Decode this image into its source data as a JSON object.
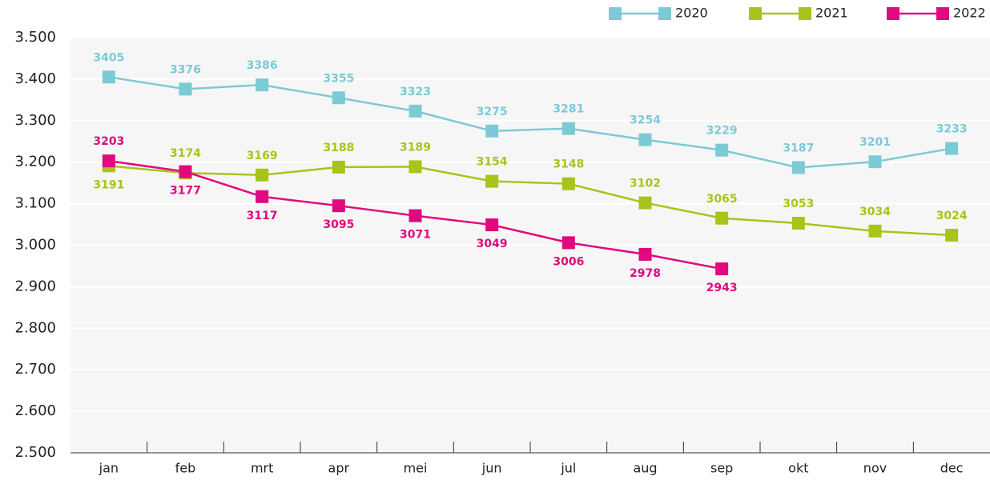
{
  "chart_data": {
    "type": "line",
    "categories": [
      "jan",
      "feb",
      "mrt",
      "apr",
      "mei",
      "jun",
      "jul",
      "aug",
      "sep",
      "okt",
      "nov",
      "dec"
    ],
    "series": [
      {
        "name": "2020",
        "color": "#7ccad6",
        "values": [
          3405,
          3376,
          3386,
          3355,
          3323,
          3275,
          3281,
          3254,
          3229,
          3187,
          3201,
          3233
        ]
      },
      {
        "name": "2021",
        "color": "#a8c41a",
        "values": [
          3191,
          3174,
          3169,
          3188,
          3189,
          3154,
          3148,
          3102,
          3065,
          3053,
          3034,
          3024
        ]
      },
      {
        "name": "2022",
        "color": "#e0097f",
        "values": [
          3203,
          3177,
          3117,
          3095,
          3071,
          3049,
          3006,
          2978,
          2943,
          null,
          null,
          null
        ]
      }
    ],
    "ylim": [
      2500,
      3500
    ],
    "yticks": [
      {
        "value": 2500,
        "label": "2.500"
      },
      {
        "value": 2600,
        "label": "2.600"
      },
      {
        "value": 2700,
        "label": "2.700"
      },
      {
        "value": 2800,
        "label": "2.800"
      },
      {
        "value": 2900,
        "label": "2.900"
      },
      {
        "value": 3000,
        "label": "3.000"
      },
      {
        "value": 3100,
        "label": "3.100"
      },
      {
        "value": 3200,
        "label": "3.200"
      },
      {
        "value": 3300,
        "label": "3.300"
      },
      {
        "value": 3400,
        "label": "3.400"
      },
      {
        "value": 3500,
        "label": "3.500"
      }
    ],
    "grid": true,
    "legend": "top-right"
  }
}
